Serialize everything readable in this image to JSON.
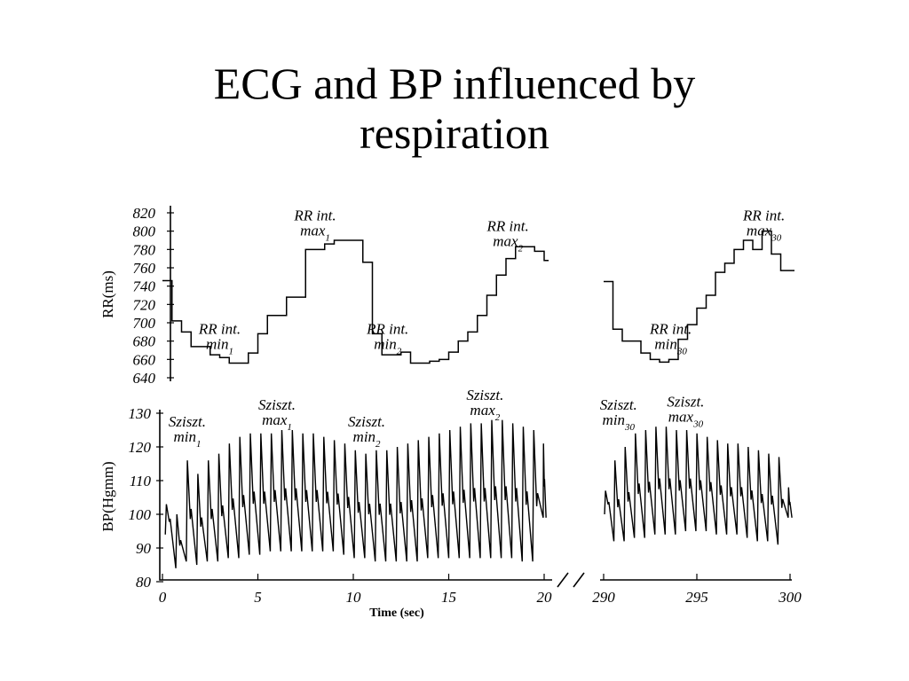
{
  "slide": {
    "title_line1": "ECG and BP influenced by",
    "title_line2": "respiration"
  },
  "chart_data": [
    {
      "type": "line",
      "line_style": "step",
      "ylabel": "RR(ms)",
      "ylim": [
        640,
        820
      ],
      "yticks": [
        820,
        800,
        780,
        760,
        740,
        720,
        700,
        680,
        660,
        640
      ],
      "series": [
        {
          "x": [
            0,
            0.5,
            1,
            1.5,
            2,
            2.5,
            3,
            3.5,
            4,
            4.5,
            5,
            5.5,
            6,
            6.5,
            7,
            7.5,
            8,
            8.5,
            9,
            9.5,
            10,
            10.5,
            11,
            11.5,
            12,
            12.5,
            13,
            13.5,
            14,
            14.5,
            15,
            15.5,
            16,
            16.5,
            17,
            17.5,
            18,
            18.5,
            19,
            19.5,
            20
          ],
          "y": [
            746,
            702,
            690,
            674,
            674,
            665,
            662,
            656,
            656,
            667,
            688,
            708,
            708,
            728,
            728,
            780,
            780,
            786,
            790,
            790,
            790,
            766,
            688,
            665,
            665,
            668,
            656,
            656,
            658,
            660,
            668,
            680,
            690,
            708,
            730,
            752,
            770,
            783,
            783,
            778,
            768
          ]
        },
        {
          "x": [
            290,
            290.5,
            291,
            291.5,
            292,
            292.5,
            293,
            293.5,
            294,
            294.5,
            295,
            295.5,
            296,
            296.5,
            297,
            297.5,
            298,
            298.5,
            299,
            299.5,
            300
          ],
          "y": [
            745,
            693,
            680,
            680,
            667,
            660,
            657,
            660,
            682,
            698,
            716,
            730,
            755,
            765,
            780,
            790,
            780,
            800,
            775,
            757,
            757
          ]
        }
      ],
      "annotations": [
        {
          "text": "RR int.",
          "subtext": "min",
          "sub": "1",
          "x": 3.0,
          "y": 688
        },
        {
          "text": "RR int.",
          "subtext": "max",
          "sub": "1",
          "x": 8.0,
          "y": 812
        },
        {
          "text": "RR int.",
          "subtext": "min",
          "sub": "2",
          "x": 11.8,
          "y": 688
        },
        {
          "text": "RR int.",
          "subtext": "max",
          "sub": "2",
          "x": 18.1,
          "y": 800
        },
        {
          "text": "RR int.",
          "subtext": "min",
          "sub": "30",
          "x": 293.6,
          "y": 688
        },
        {
          "text": "RR int.",
          "subtext": "max",
          "sub": "30",
          "x": 298.6,
          "y": 812
        }
      ]
    },
    {
      "type": "line",
      "ylabel": "BP(Hgmm)",
      "xlabel": "Time (sec)",
      "ylim": [
        80,
        130
      ],
      "yticks": [
        130,
        120,
        110,
        100,
        90,
        80
      ],
      "xticks": [
        0,
        5,
        10,
        15,
        20,
        290,
        295,
        300
      ],
      "beat_period_sec": 0.55,
      "beats": [
        {
          "t": 0.15,
          "sys": 103,
          "dia": 94
        },
        {
          "t": 0.7,
          "sys": 100,
          "dia": 84
        },
        {
          "t": 1.25,
          "sys": 116,
          "dia": 86
        },
        {
          "t": 1.8,
          "sys": 112,
          "dia": 85
        },
        {
          "t": 2.35,
          "sys": 116,
          "dia": 86
        },
        {
          "t": 2.9,
          "sys": 118,
          "dia": 86
        },
        {
          "t": 3.45,
          "sys": 121,
          "dia": 87
        },
        {
          "t": 4.0,
          "sys": 123,
          "dia": 87
        },
        {
          "t": 4.55,
          "sys": 124,
          "dia": 88
        },
        {
          "t": 5.1,
          "sys": 124,
          "dia": 88
        },
        {
          "t": 5.65,
          "sys": 124,
          "dia": 89
        },
        {
          "t": 6.2,
          "sys": 125,
          "dia": 89
        },
        {
          "t": 6.75,
          "sys": 125,
          "dia": 89
        },
        {
          "t": 7.3,
          "sys": 124,
          "dia": 89
        },
        {
          "t": 7.85,
          "sys": 124,
          "dia": 89
        },
        {
          "t": 8.4,
          "sys": 123,
          "dia": 89
        },
        {
          "t": 8.95,
          "sys": 122,
          "dia": 89
        },
        {
          "t": 9.5,
          "sys": 121,
          "dia": 88
        },
        {
          "t": 10.05,
          "sys": 119,
          "dia": 87
        },
        {
          "t": 10.6,
          "sys": 118,
          "dia": 87
        },
        {
          "t": 11.15,
          "sys": 119,
          "dia": 86
        },
        {
          "t": 11.7,
          "sys": 119,
          "dia": 86
        },
        {
          "t": 12.25,
          "sys": 120,
          "dia": 86
        },
        {
          "t": 12.8,
          "sys": 121,
          "dia": 86
        },
        {
          "t": 13.35,
          "sys": 122,
          "dia": 86
        },
        {
          "t": 13.9,
          "sys": 123,
          "dia": 87
        },
        {
          "t": 14.45,
          "sys": 124,
          "dia": 87
        },
        {
          "t": 15.0,
          "sys": 125,
          "dia": 87
        },
        {
          "t": 15.55,
          "sys": 126,
          "dia": 87
        },
        {
          "t": 16.1,
          "sys": 127,
          "dia": 87
        },
        {
          "t": 16.65,
          "sys": 127,
          "dia": 87
        },
        {
          "t": 17.2,
          "sys": 128,
          "dia": 87
        },
        {
          "t": 17.75,
          "sys": 128,
          "dia": 87
        },
        {
          "t": 18.3,
          "sys": 127,
          "dia": 87
        },
        {
          "t": 18.85,
          "sys": 126,
          "dia": 86
        },
        {
          "t": 19.4,
          "sys": 125,
          "dia": 86
        },
        {
          "t": 19.95,
          "sys": 121,
          "dia": 99
        },
        {
          "t": 290.05,
          "sys": 107,
          "dia": 100
        },
        {
          "t": 290.55,
          "sys": 116,
          "dia": 92
        },
        {
          "t": 291.1,
          "sys": 120,
          "dia": 92
        },
        {
          "t": 291.65,
          "sys": 124,
          "dia": 93
        },
        {
          "t": 292.2,
          "sys": 125,
          "dia": 93
        },
        {
          "t": 292.75,
          "sys": 126,
          "dia": 94
        },
        {
          "t": 293.3,
          "sys": 126,
          "dia": 94
        },
        {
          "t": 293.85,
          "sys": 125,
          "dia": 94
        },
        {
          "t": 294.4,
          "sys": 125,
          "dia": 95
        },
        {
          "t": 294.95,
          "sys": 124,
          "dia": 95
        },
        {
          "t": 295.5,
          "sys": 123,
          "dia": 95
        },
        {
          "t": 296.05,
          "sys": 122,
          "dia": 94
        },
        {
          "t": 296.6,
          "sys": 121,
          "dia": 94
        },
        {
          "t": 297.15,
          "sys": 121,
          "dia": 94
        },
        {
          "t": 297.7,
          "sys": 120,
          "dia": 93
        },
        {
          "t": 298.25,
          "sys": 119,
          "dia": 92
        },
        {
          "t": 298.8,
          "sys": 118,
          "dia": 92
        },
        {
          "t": 299.35,
          "sys": 117,
          "dia": 91
        },
        {
          "t": 299.9,
          "sys": 108,
          "dia": 99
        }
      ],
      "annotations": [
        {
          "text": "Sziszt.",
          "subtext": "min",
          "sub": "1",
          "x": 1.3,
          "y": 126
        },
        {
          "text": "Sziszt.",
          "subtext": "max",
          "sub": "1",
          "x": 6.0,
          "y": 131
        },
        {
          "text": "Sziszt.",
          "subtext": "min",
          "sub": "2",
          "x": 10.7,
          "y": 126
        },
        {
          "text": "Sziszt.",
          "subtext": "max",
          "sub": "2",
          "x": 16.9,
          "y": 134
        },
        {
          "text": "Sziszt.",
          "subtext": "min",
          "sub": "30",
          "x": 290.8,
          "y": 131
        },
        {
          "text": "Sziszt.",
          "subtext": "max",
          "sub": "30",
          "x": 294.4,
          "y": 132
        }
      ]
    }
  ]
}
